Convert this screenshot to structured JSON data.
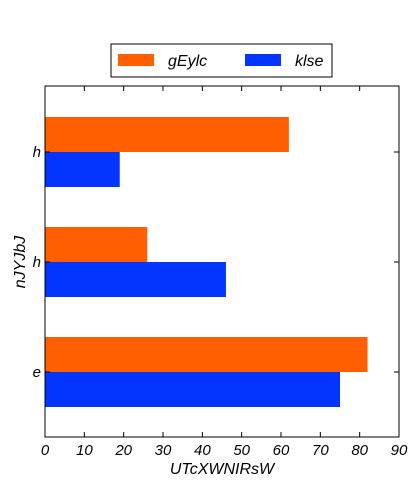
{
  "chart_data": {
    "type": "bar",
    "orientation": "horizontal",
    "title": "",
    "xlabel": "UTcXWNIRsW",
    "ylabel": "nJYJbJ",
    "categories": [
      "e",
      "h",
      "h"
    ],
    "series": [
      {
        "name": "gEylc",
        "color": "#ff5f00",
        "values": [
          82,
          26,
          62
        ]
      },
      {
        "name": "klse",
        "color": "#0335ff",
        "values": [
          75,
          46,
          19
        ]
      }
    ],
    "xlim": [
      0,
      90
    ],
    "xticks": [
      "0",
      "10",
      "20",
      "30",
      "40",
      "50",
      "60",
      "70",
      "80",
      "90"
    ],
    "grid": false,
    "legend": "top-center"
  }
}
